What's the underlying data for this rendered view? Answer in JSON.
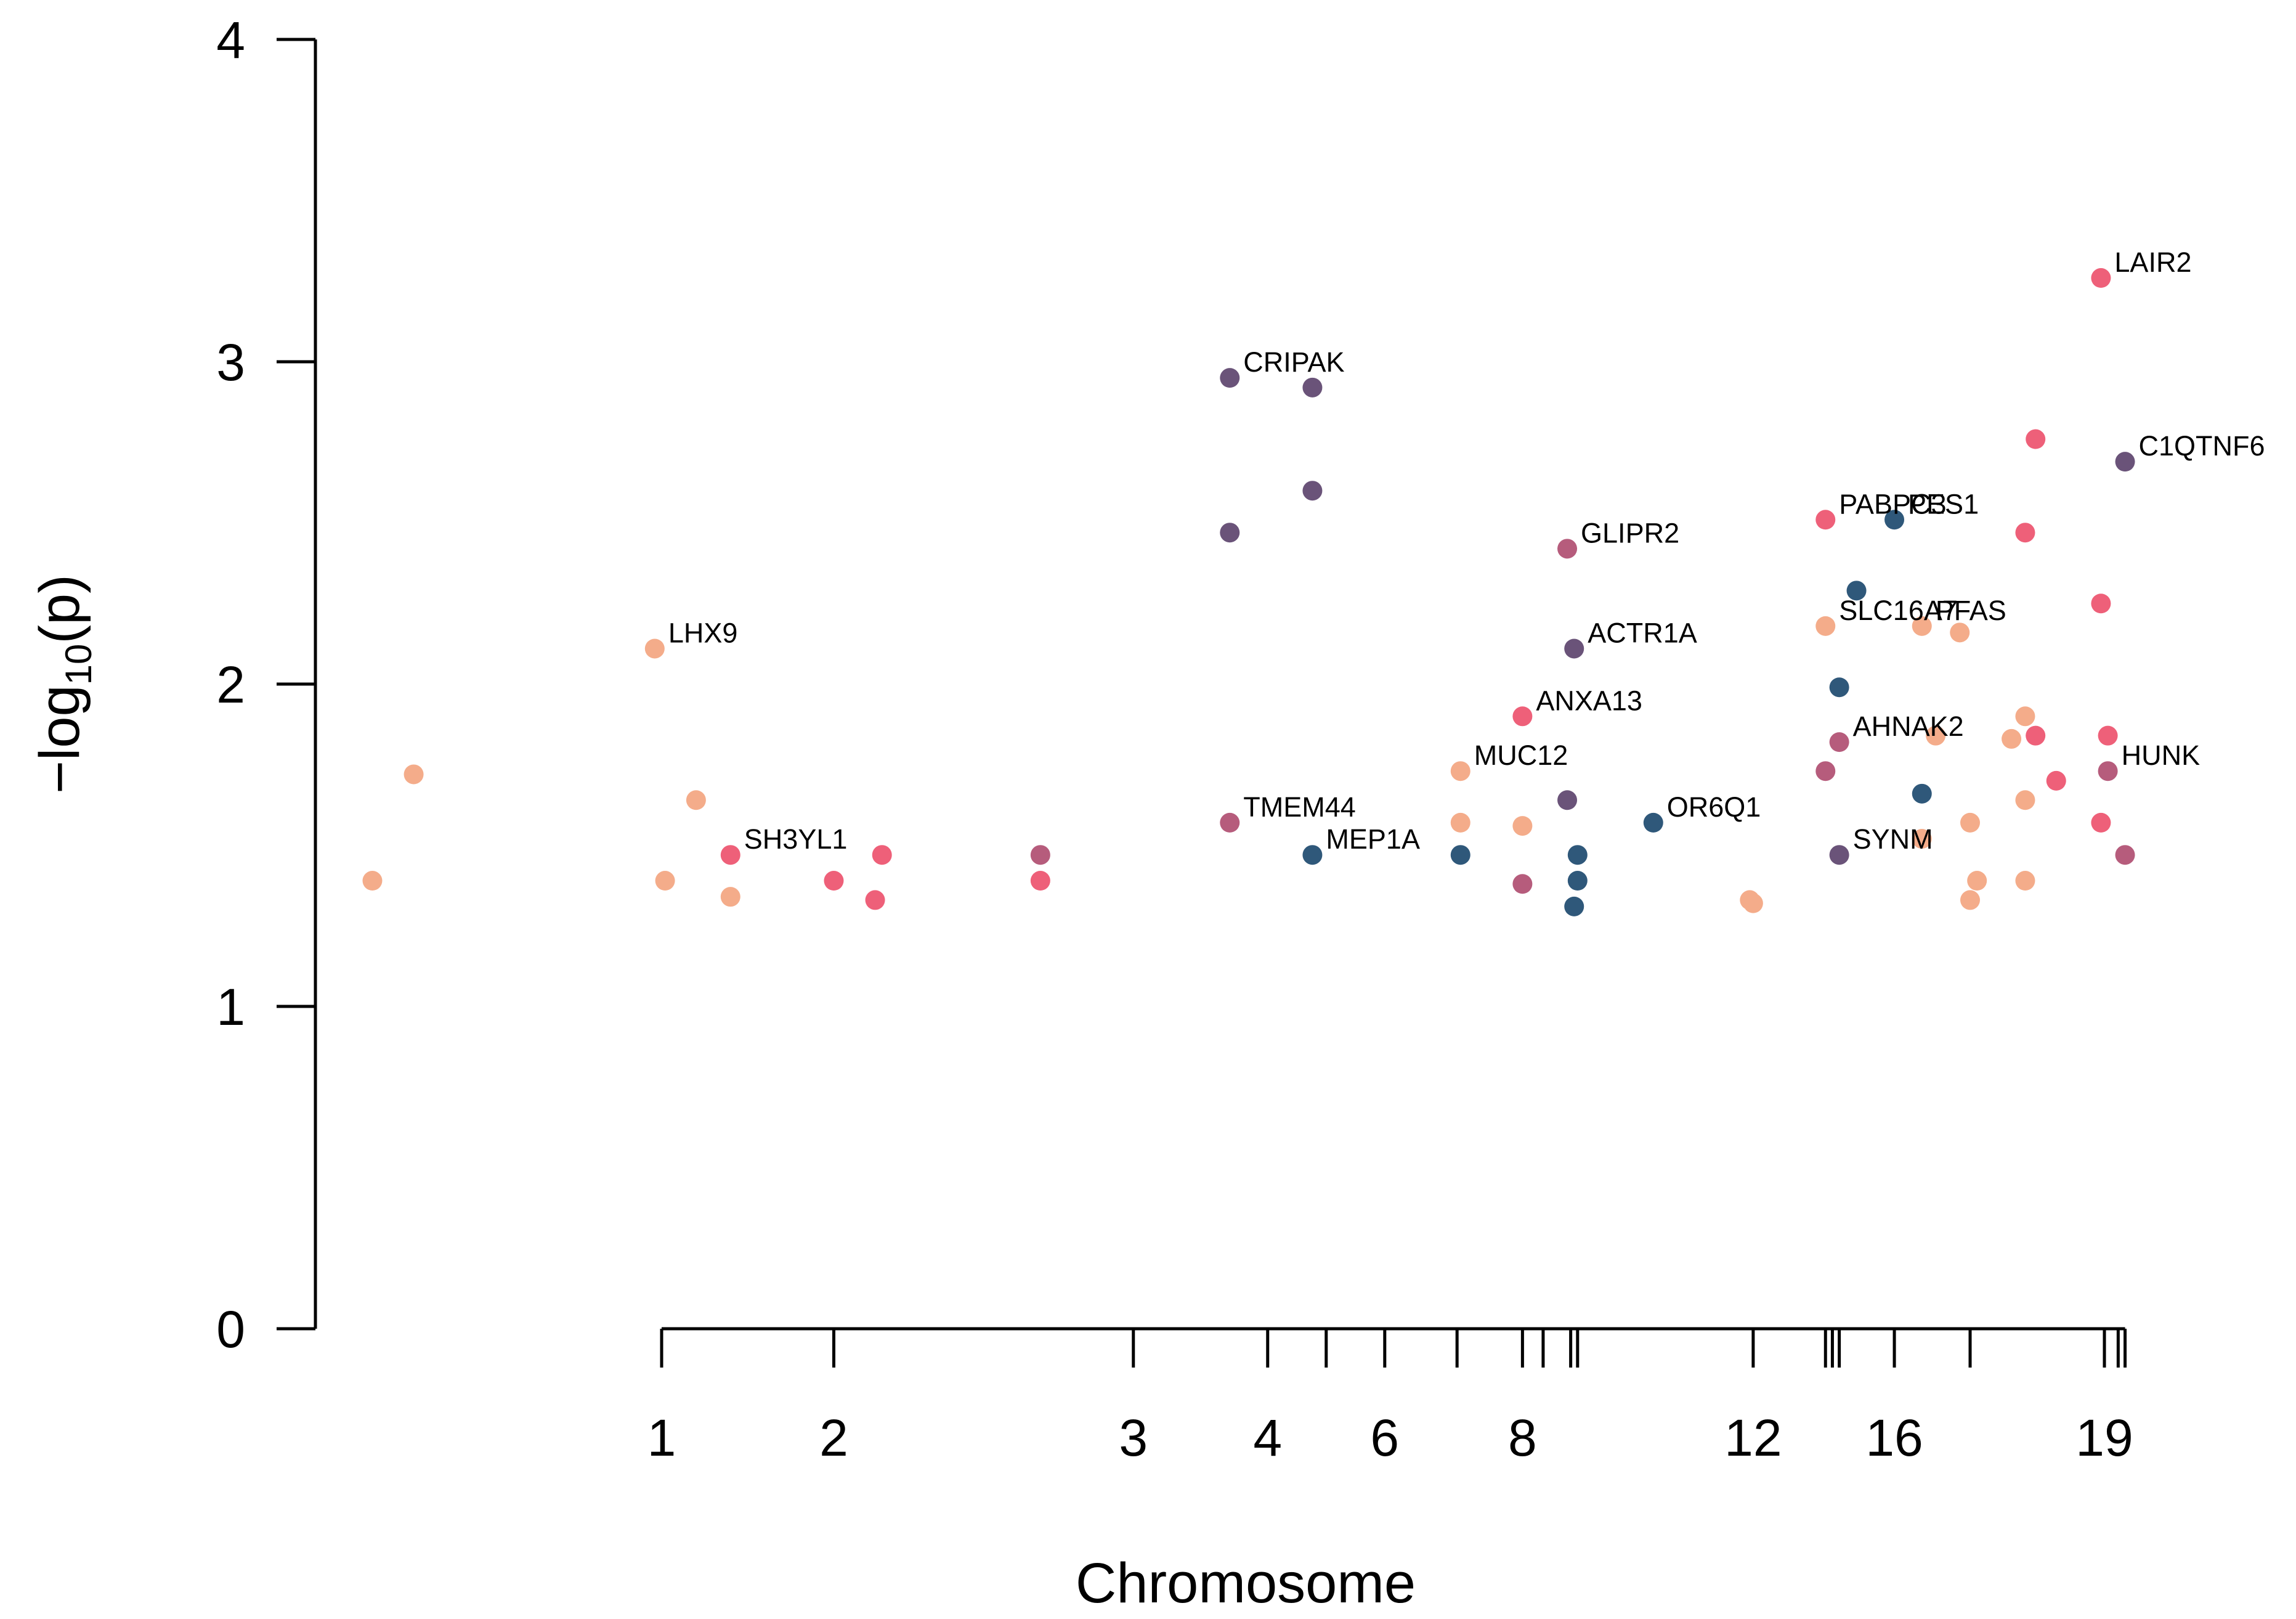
{
  "chart_data": {
    "type": "scatter",
    "title": "",
    "xlabel": "Chromosome",
    "ylabel_prefix": "−log",
    "ylabel_sub": "10",
    "ylabel_suffix": "(p)",
    "ylim": [
      0,
      4
    ],
    "y_ticks": [
      "0",
      "1",
      "2",
      "3",
      "4"
    ],
    "x_domain": [
      -0.75,
      4.25
    ],
    "x_ticks": [
      {
        "pos": 0.0,
        "label": "1"
      },
      {
        "pos": 0.5,
        "label": "2"
      },
      {
        "pos": 1.37,
        "label": "3"
      },
      {
        "pos": 1.76,
        "label": "4"
      },
      {
        "pos": 1.93,
        "label": ""
      },
      {
        "pos": 2.1,
        "label": "6"
      },
      {
        "pos": 2.31,
        "label": ""
      },
      {
        "pos": 2.5,
        "label": "8"
      },
      {
        "pos": 2.56,
        "label": ""
      },
      {
        "pos": 2.64,
        "label": ""
      },
      {
        "pos": 2.66,
        "label": ""
      },
      {
        "pos": 3.17,
        "label": "12"
      },
      {
        "pos": 3.38,
        "label": ""
      },
      {
        "pos": 3.4,
        "label": ""
      },
      {
        "pos": 3.42,
        "label": ""
      },
      {
        "pos": 3.58,
        "label": "16"
      },
      {
        "pos": 3.8,
        "label": ""
      },
      {
        "pos": 4.19,
        "label": "19"
      },
      {
        "pos": 4.23,
        "label": ""
      },
      {
        "pos": 4.25,
        "label": ""
      }
    ],
    "colors": {
      "peach": "#F4AC8A",
      "pink": "#EE6079",
      "mauve": "#B65C7C",
      "purple": "#6A5379",
      "navy": "#2F587A"
    },
    "points": [
      {
        "x": -0.84,
        "y": 1.39,
        "color": "peach"
      },
      {
        "x": -0.72,
        "y": 1.72,
        "color": "peach"
      },
      {
        "x": -0.02,
        "y": 2.11,
        "color": "peach",
        "label": "LHX9"
      },
      {
        "x": 0.01,
        "y": 1.39,
        "color": "peach"
      },
      {
        "x": 0.1,
        "y": 1.64,
        "color": "peach"
      },
      {
        "x": 0.2,
        "y": 1.47,
        "color": "pink",
        "label": "SH3YL1"
      },
      {
        "x": 0.2,
        "y": 1.34,
        "color": "peach"
      },
      {
        "x": 0.5,
        "y": 1.39,
        "color": "pink"
      },
      {
        "x": 0.62,
        "y": 1.33,
        "color": "pink"
      },
      {
        "x": 0.64,
        "y": 1.47,
        "color": "pink"
      },
      {
        "x": 1.1,
        "y": 1.47,
        "color": "mauve"
      },
      {
        "x": 1.1,
        "y": 1.39,
        "color": "pink"
      },
      {
        "x": 1.65,
        "y": 2.95,
        "color": "purple",
        "label": "CRIPAK"
      },
      {
        "x": 1.65,
        "y": 2.47,
        "color": "purple"
      },
      {
        "x": 1.65,
        "y": 1.57,
        "color": "mauve",
        "label": "TMEM44"
      },
      {
        "x": 1.89,
        "y": 2.92,
        "color": "purple"
      },
      {
        "x": 1.89,
        "y": 2.6,
        "color": "purple"
      },
      {
        "x": 1.89,
        "y": 1.47,
        "color": "navy",
        "label": "MEP1A"
      },
      {
        "x": 2.32,
        "y": 1.73,
        "color": "peach",
        "label": "MUC12"
      },
      {
        "x": 2.32,
        "y": 1.57,
        "color": "peach"
      },
      {
        "x": 2.32,
        "y": 1.47,
        "color": "navy"
      },
      {
        "x": 2.5,
        "y": 1.9,
        "color": "pink",
        "label": "ANXA13"
      },
      {
        "x": 2.5,
        "y": 1.56,
        "color": "peach"
      },
      {
        "x": 2.5,
        "y": 1.38,
        "color": "mauve"
      },
      {
        "x": 2.63,
        "y": 2.42,
        "color": "mauve",
        "label": "GLIPR2"
      },
      {
        "x": 2.63,
        "y": 1.64,
        "color": "purple"
      },
      {
        "x": 2.65,
        "y": 2.11,
        "color": "purple",
        "label": "ACTR1A"
      },
      {
        "x": 2.65,
        "y": 1.31,
        "color": "navy"
      },
      {
        "x": 2.66,
        "y": 1.47,
        "color": "navy"
      },
      {
        "x": 2.66,
        "y": 1.39,
        "color": "navy"
      },
      {
        "x": 2.88,
        "y": 1.57,
        "color": "navy",
        "label": "OR6Q1"
      },
      {
        "x": 3.16,
        "y": 1.33,
        "color": "peach"
      },
      {
        "x": 3.17,
        "y": 1.32,
        "color": "peach"
      },
      {
        "x": 3.38,
        "y": 2.51,
        "color": "pink",
        "label": "PABPC3"
      },
      {
        "x": 3.38,
        "y": 2.18,
        "color": "peach",
        "label": "SLC16A7"
      },
      {
        "x": 3.38,
        "y": 1.73,
        "color": "mauve"
      },
      {
        "x": 3.42,
        "y": 1.99,
        "color": "navy"
      },
      {
        "x": 3.42,
        "y": 1.82,
        "color": "mauve",
        "label": "AHNAK2"
      },
      {
        "x": 3.42,
        "y": 1.47,
        "color": "purple",
        "label": "SYNM"
      },
      {
        "x": 3.47,
        "y": 2.29,
        "color": "navy"
      },
      {
        "x": 3.58,
        "y": 2.51,
        "color": "navy",
        "label": "PES1"
      },
      {
        "x": 3.66,
        "y": 2.18,
        "color": "peach",
        "label": "PFAS"
      },
      {
        "x": 3.66,
        "y": 1.66,
        "color": "navy"
      },
      {
        "x": 3.66,
        "y": 1.52,
        "color": "peach"
      },
      {
        "x": 3.7,
        "y": 1.84,
        "color": "peach"
      },
      {
        "x": 3.77,
        "y": 2.16,
        "color": "peach"
      },
      {
        "x": 3.8,
        "y": 1.57,
        "color": "peach"
      },
      {
        "x": 3.8,
        "y": 1.33,
        "color": "peach"
      },
      {
        "x": 3.82,
        "y": 1.39,
        "color": "peach"
      },
      {
        "x": 3.92,
        "y": 1.83,
        "color": "peach"
      },
      {
        "x": 3.96,
        "y": 2.47,
        "color": "pink"
      },
      {
        "x": 3.96,
        "y": 1.9,
        "color": "peach"
      },
      {
        "x": 3.96,
        "y": 1.64,
        "color": "peach"
      },
      {
        "x": 3.96,
        "y": 1.39,
        "color": "peach"
      },
      {
        "x": 3.99,
        "y": 2.76,
        "color": "pink"
      },
      {
        "x": 3.99,
        "y": 1.84,
        "color": "pink"
      },
      {
        "x": 4.05,
        "y": 1.7,
        "color": "pink"
      },
      {
        "x": 4.18,
        "y": 3.26,
        "color": "pink",
        "label": "LAIR2"
      },
      {
        "x": 4.18,
        "y": 2.25,
        "color": "pink"
      },
      {
        "x": 4.18,
        "y": 1.57,
        "color": "pink"
      },
      {
        "x": 4.2,
        "y": 1.84,
        "color": "pink"
      },
      {
        "x": 4.2,
        "y": 1.73,
        "color": "mauve",
        "label": "HUNK"
      },
      {
        "x": 4.25,
        "y": 2.69,
        "color": "purple",
        "label": "C1QTNF6"
      },
      {
        "x": 4.25,
        "y": 1.47,
        "color": "mauve"
      }
    ]
  }
}
